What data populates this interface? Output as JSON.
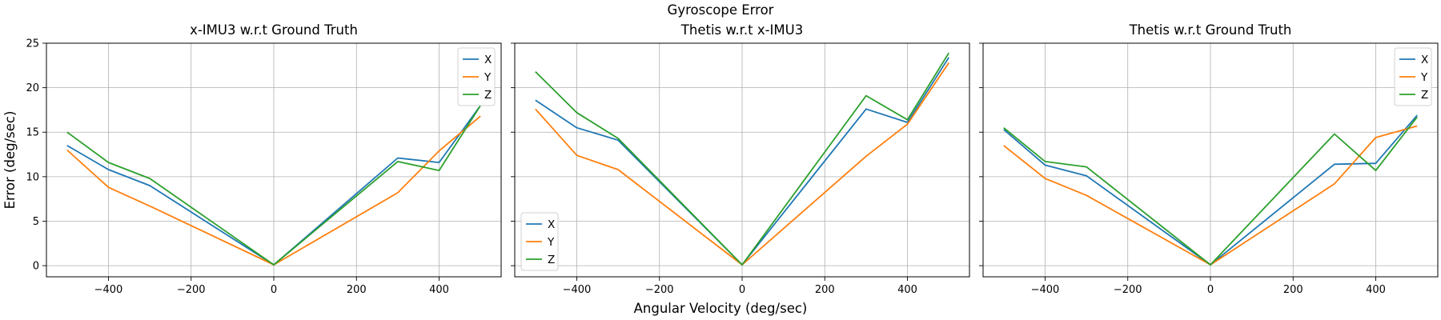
{
  "figure": {
    "suptitle": "Gyroscope Error",
    "xlabel": "Angular Velocity (deg/sec)",
    "ylabel": "Error (deg/sec)"
  },
  "chart_data": [
    {
      "type": "line",
      "title": "x-IMU3 w.r.t Ground Truth",
      "xlabel": "Angular Velocity (deg/sec)",
      "ylabel": "Error (deg/sec)",
      "x": [
        -500,
        -400,
        -300,
        0,
        300,
        400,
        500
      ],
      "xlim": [
        -550,
        550
      ],
      "ylim": [
        -1.25,
        25
      ],
      "xticks": [
        -400,
        -200,
        0,
        200,
        400
      ],
      "yticks": [
        0,
        5,
        10,
        15,
        20,
        25
      ],
      "grid": true,
      "legend": "top-right",
      "series": [
        {
          "name": "X",
          "color": "#1f77b4",
          "values": [
            13.5,
            10.8,
            9.0,
            0.1,
            12.1,
            11.6,
            18.0
          ]
        },
        {
          "name": "Y",
          "color": "#ff7f0e",
          "values": [
            13.0,
            8.8,
            6.7,
            0.1,
            8.2,
            12.9,
            16.8
          ]
        },
        {
          "name": "Z",
          "color": "#2ca02c",
          "values": [
            15.0,
            11.6,
            9.8,
            0.1,
            11.7,
            10.7,
            18.0
          ]
        }
      ]
    },
    {
      "type": "line",
      "title": "Thetis w.r.t x-IMU3",
      "xlabel": "Angular Velocity (deg/sec)",
      "x": [
        -500,
        -400,
        -300,
        0,
        300,
        400,
        500
      ],
      "xlim": [
        -550,
        550
      ],
      "ylim": [
        -1.25,
        25
      ],
      "xticks": [
        -400,
        -200,
        0,
        200,
        400
      ],
      "yticks": [
        0,
        5,
        10,
        15,
        20,
        25
      ],
      "grid": true,
      "legend": "bottom-left",
      "series": [
        {
          "name": "X",
          "color": "#1f77b4",
          "values": [
            18.6,
            15.5,
            14.1,
            0.1,
            17.6,
            16.1,
            23.4
          ]
        },
        {
          "name": "Y",
          "color": "#ff7f0e",
          "values": [
            17.6,
            12.4,
            10.8,
            0.1,
            12.3,
            15.9,
            22.8
          ]
        },
        {
          "name": "Z",
          "color": "#2ca02c",
          "values": [
            21.8,
            17.2,
            14.3,
            0.1,
            19.1,
            16.4,
            23.9
          ]
        }
      ]
    },
    {
      "type": "line",
      "title": "Thetis w.r.t Ground Truth",
      "xlabel": "Angular Velocity (deg/sec)",
      "x": [
        -500,
        -400,
        -300,
        0,
        300,
        400,
        500
      ],
      "xlim": [
        -550,
        550
      ],
      "ylim": [
        -1.25,
        25
      ],
      "xticks": [
        -400,
        -200,
        0,
        200,
        400
      ],
      "yticks": [
        0,
        5,
        10,
        15,
        20,
        25
      ],
      "grid": true,
      "legend": "top-right",
      "series": [
        {
          "name": "X",
          "color": "#1f77b4",
          "values": [
            15.3,
            11.3,
            10.1,
            0.1,
            11.4,
            11.5,
            16.9
          ]
        },
        {
          "name": "Y",
          "color": "#ff7f0e",
          "values": [
            13.5,
            9.8,
            7.9,
            0.1,
            9.2,
            14.4,
            15.7
          ]
        },
        {
          "name": "Z",
          "color": "#2ca02c",
          "values": [
            15.5,
            11.7,
            11.1,
            0.1,
            14.8,
            10.7,
            16.7
          ]
        }
      ]
    }
  ]
}
